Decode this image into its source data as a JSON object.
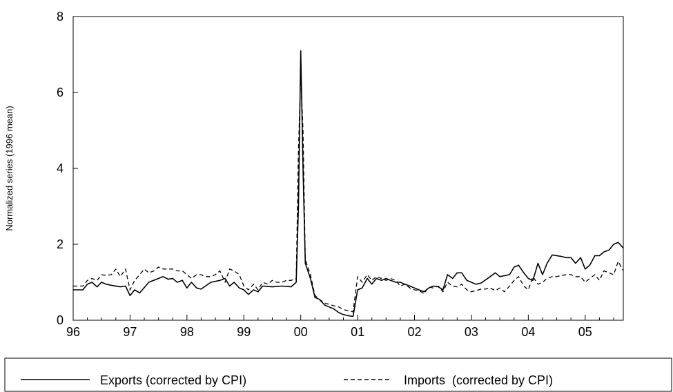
{
  "chart_data": {
    "type": "line",
    "ylabel": "Normalized series (1996 mean)",
    "xlabel": "",
    "ylim": [
      0,
      8
    ],
    "xlim": [
      1996.0,
      2005.67
    ],
    "y_ticks": [
      "0",
      "2",
      "4",
      "6",
      "8"
    ],
    "x_ticks": [
      {
        "x": 1996,
        "label": "96"
      },
      {
        "x": 1997,
        "label": "97"
      },
      {
        "x": 1998,
        "label": "98"
      },
      {
        "x": 1999,
        "label": "99"
      },
      {
        "x": 2000,
        "label": "00"
      },
      {
        "x": 2001,
        "label": "01"
      },
      {
        "x": 2002,
        "label": "02"
      },
      {
        "x": 2003,
        "label": "03"
      },
      {
        "x": 2004,
        "label": "04"
      },
      {
        "x": 2005,
        "label": "05"
      }
    ],
    "grid": false,
    "legend_position": "bottom",
    "series": [
      {
        "name": "Exports (corrected by CPI)",
        "style": "solid",
        "color": "#000000",
        "points": [
          [
            1996.0,
            0.8
          ],
          [
            1996.17,
            0.8
          ],
          [
            1996.25,
            0.95
          ],
          [
            1996.33,
            1.0
          ],
          [
            1996.42,
            0.88
          ],
          [
            1996.5,
            1.0
          ],
          [
            1996.58,
            0.95
          ],
          [
            1996.67,
            0.92
          ],
          [
            1996.83,
            0.88
          ],
          [
            1996.92,
            0.9
          ],
          [
            1997.0,
            0.65
          ],
          [
            1997.08,
            0.8
          ],
          [
            1997.17,
            0.72
          ],
          [
            1997.33,
            1.0
          ],
          [
            1997.5,
            1.1
          ],
          [
            1997.58,
            1.15
          ],
          [
            1997.67,
            1.08
          ],
          [
            1997.75,
            1.1
          ],
          [
            1997.83,
            1.0
          ],
          [
            1997.92,
            1.05
          ],
          [
            1998.0,
            0.85
          ],
          [
            1998.08,
            1.0
          ],
          [
            1998.17,
            0.85
          ],
          [
            1998.25,
            0.82
          ],
          [
            1998.42,
            1.0
          ],
          [
            1998.58,
            1.05
          ],
          [
            1998.67,
            1.1
          ],
          [
            1998.75,
            0.9
          ],
          [
            1998.83,
            1.0
          ],
          [
            1998.92,
            0.85
          ],
          [
            1999.0,
            0.8
          ],
          [
            1999.08,
            0.68
          ],
          [
            1999.17,
            0.8
          ],
          [
            1999.25,
            0.75
          ],
          [
            1999.33,
            0.9
          ],
          [
            1999.5,
            0.88
          ],
          [
            1999.67,
            0.9
          ],
          [
            1999.83,
            0.88
          ],
          [
            1999.92,
            1.0
          ],
          [
            1999.96,
            3.0
          ],
          [
            2000.0,
            7.1
          ],
          [
            2000.04,
            4.0
          ],
          [
            2000.08,
            1.5
          ],
          [
            2000.17,
            1.1
          ],
          [
            2000.25,
            0.6
          ],
          [
            2000.33,
            0.55
          ],
          [
            2000.42,
            0.4
          ],
          [
            2000.5,
            0.35
          ],
          [
            2000.58,
            0.3
          ],
          [
            2000.67,
            0.2
          ],
          [
            2000.75,
            0.15
          ],
          [
            2000.83,
            0.12
          ],
          [
            2000.92,
            0.1
          ],
          [
            2001.0,
            0.8
          ],
          [
            2001.08,
            0.85
          ],
          [
            2001.17,
            1.1
          ],
          [
            2001.25,
            0.95
          ],
          [
            2001.33,
            1.1
          ],
          [
            2001.42,
            1.05
          ],
          [
            2001.5,
            1.1
          ],
          [
            2001.58,
            1.05
          ],
          [
            2001.67,
            1.0
          ],
          [
            2001.75,
            1.0
          ],
          [
            2001.83,
            0.95
          ],
          [
            2001.92,
            0.9
          ],
          [
            2002.0,
            0.85
          ],
          [
            2002.08,
            0.8
          ],
          [
            2002.17,
            0.75
          ],
          [
            2002.25,
            0.85
          ],
          [
            2002.33,
            0.9
          ],
          [
            2002.42,
            0.88
          ],
          [
            2002.5,
            0.8
          ],
          [
            2002.58,
            1.2
          ],
          [
            2002.67,
            1.1
          ],
          [
            2002.75,
            1.25
          ],
          [
            2002.83,
            1.25
          ],
          [
            2002.92,
            1.05
          ],
          [
            2003.0,
            1.0
          ],
          [
            2003.08,
            0.95
          ],
          [
            2003.17,
            0.98
          ],
          [
            2003.33,
            1.15
          ],
          [
            2003.42,
            1.25
          ],
          [
            2003.5,
            1.15
          ],
          [
            2003.67,
            1.2
          ],
          [
            2003.75,
            1.4
          ],
          [
            2003.83,
            1.45
          ],
          [
            2003.92,
            1.25
          ],
          [
            2004.0,
            1.1
          ],
          [
            2004.08,
            1.05
          ],
          [
            2004.17,
            1.5
          ],
          [
            2004.25,
            1.2
          ],
          [
            2004.33,
            1.5
          ],
          [
            2004.42,
            1.72
          ],
          [
            2004.5,
            1.7
          ],
          [
            2004.58,
            1.68
          ],
          [
            2004.67,
            1.65
          ],
          [
            2004.75,
            1.65
          ],
          [
            2004.83,
            1.5
          ],
          [
            2004.92,
            1.65
          ],
          [
            2005.0,
            1.35
          ],
          [
            2005.08,
            1.45
          ],
          [
            2005.17,
            1.7
          ],
          [
            2005.25,
            1.7
          ],
          [
            2005.33,
            1.8
          ],
          [
            2005.42,
            1.85
          ],
          [
            2005.5,
            2.0
          ],
          [
            2005.58,
            2.05
          ],
          [
            2005.67,
            1.9
          ]
        ]
      },
      {
        "name": "Imports  (corrected by CPI)",
        "style": "dashed",
        "color": "#000000",
        "points": [
          [
            1996.0,
            0.9
          ],
          [
            1996.17,
            0.9
          ],
          [
            1996.25,
            1.05
          ],
          [
            1996.33,
            1.1
          ],
          [
            1996.42,
            1.05
          ],
          [
            1996.5,
            1.2
          ],
          [
            1996.58,
            1.18
          ],
          [
            1996.67,
            1.2
          ],
          [
            1996.75,
            1.35
          ],
          [
            1996.83,
            1.15
          ],
          [
            1996.92,
            1.35
          ],
          [
            1997.0,
            0.8
          ],
          [
            1997.08,
            1.05
          ],
          [
            1997.17,
            1.2
          ],
          [
            1997.25,
            1.35
          ],
          [
            1997.33,
            1.25
          ],
          [
            1997.42,
            1.3
          ],
          [
            1997.5,
            1.4
          ],
          [
            1997.58,
            1.35
          ],
          [
            1997.67,
            1.35
          ],
          [
            1997.75,
            1.35
          ],
          [
            1997.83,
            1.3
          ],
          [
            1997.92,
            1.3
          ],
          [
            1998.0,
            1.2
          ],
          [
            1998.08,
            1.1
          ],
          [
            1998.17,
            1.2
          ],
          [
            1998.25,
            1.2
          ],
          [
            1998.33,
            1.15
          ],
          [
            1998.42,
            1.15
          ],
          [
            1998.5,
            1.2
          ],
          [
            1998.58,
            1.3
          ],
          [
            1998.67,
            1.0
          ],
          [
            1998.75,
            1.35
          ],
          [
            1998.83,
            1.3
          ],
          [
            1998.92,
            1.2
          ],
          [
            1999.0,
            0.9
          ],
          [
            1999.08,
            0.8
          ],
          [
            1999.17,
            0.95
          ],
          [
            1999.25,
            0.8
          ],
          [
            1999.33,
            1.0
          ],
          [
            1999.42,
            0.95
          ],
          [
            1999.5,
            1.05
          ],
          [
            1999.58,
            1.0
          ],
          [
            1999.67,
            1.0
          ],
          [
            1999.75,
            1.05
          ],
          [
            1999.83,
            1.05
          ],
          [
            1999.92,
            1.1
          ],
          [
            1999.96,
            4.5
          ],
          [
            2000.0,
            6.5
          ],
          [
            2000.04,
            5.0
          ],
          [
            2000.08,
            1.6
          ],
          [
            2000.17,
            1.2
          ],
          [
            2000.25,
            0.65
          ],
          [
            2000.33,
            0.55
          ],
          [
            2000.42,
            0.45
          ],
          [
            2000.5,
            0.42
          ],
          [
            2000.58,
            0.38
          ],
          [
            2000.67,
            0.35
          ],
          [
            2000.75,
            0.28
          ],
          [
            2000.83,
            0.25
          ],
          [
            2000.92,
            0.22
          ],
          [
            2001.0,
            1.15
          ],
          [
            2001.08,
            1.0
          ],
          [
            2001.17,
            1.2
          ],
          [
            2001.25,
            1.05
          ],
          [
            2001.33,
            1.15
          ],
          [
            2001.42,
            1.1
          ],
          [
            2001.5,
            1.05
          ],
          [
            2001.58,
            1.1
          ],
          [
            2001.67,
            1.05
          ],
          [
            2001.75,
            0.9
          ],
          [
            2001.83,
            0.95
          ],
          [
            2001.92,
            0.85
          ],
          [
            2002.0,
            0.8
          ],
          [
            2002.08,
            0.78
          ],
          [
            2002.17,
            0.7
          ],
          [
            2002.25,
            0.88
          ],
          [
            2002.33,
            0.85
          ],
          [
            2002.42,
            0.9
          ],
          [
            2002.5,
            0.75
          ],
          [
            2002.58,
            1.0
          ],
          [
            2002.67,
            0.9
          ],
          [
            2002.75,
            0.88
          ],
          [
            2002.83,
            0.95
          ],
          [
            2002.92,
            0.8
          ],
          [
            2003.0,
            0.75
          ],
          [
            2003.08,
            0.78
          ],
          [
            2003.17,
            0.82
          ],
          [
            2003.25,
            0.82
          ],
          [
            2003.33,
            0.85
          ],
          [
            2003.42,
            0.78
          ],
          [
            2003.5,
            0.85
          ],
          [
            2003.58,
            0.75
          ],
          [
            2003.67,
            0.9
          ],
          [
            2003.75,
            1.05
          ],
          [
            2003.83,
            1.15
          ],
          [
            2003.92,
            0.9
          ],
          [
            2004.0,
            0.8
          ],
          [
            2004.08,
            1.15
          ],
          [
            2004.17,
            0.95
          ],
          [
            2004.25,
            1.0
          ],
          [
            2004.33,
            1.1
          ],
          [
            2004.42,
            1.15
          ],
          [
            2004.5,
            1.15
          ],
          [
            2004.58,
            1.18
          ],
          [
            2004.67,
            1.2
          ],
          [
            2004.75,
            1.2
          ],
          [
            2004.83,
            1.15
          ],
          [
            2004.92,
            1.15
          ],
          [
            2005.0,
            1.0
          ],
          [
            2005.08,
            1.1
          ],
          [
            2005.17,
            1.2
          ],
          [
            2005.25,
            1.05
          ],
          [
            2005.33,
            1.3
          ],
          [
            2005.42,
            1.25
          ],
          [
            2005.5,
            1.2
          ],
          [
            2005.58,
            1.55
          ],
          [
            2005.67,
            1.3
          ]
        ]
      }
    ]
  }
}
